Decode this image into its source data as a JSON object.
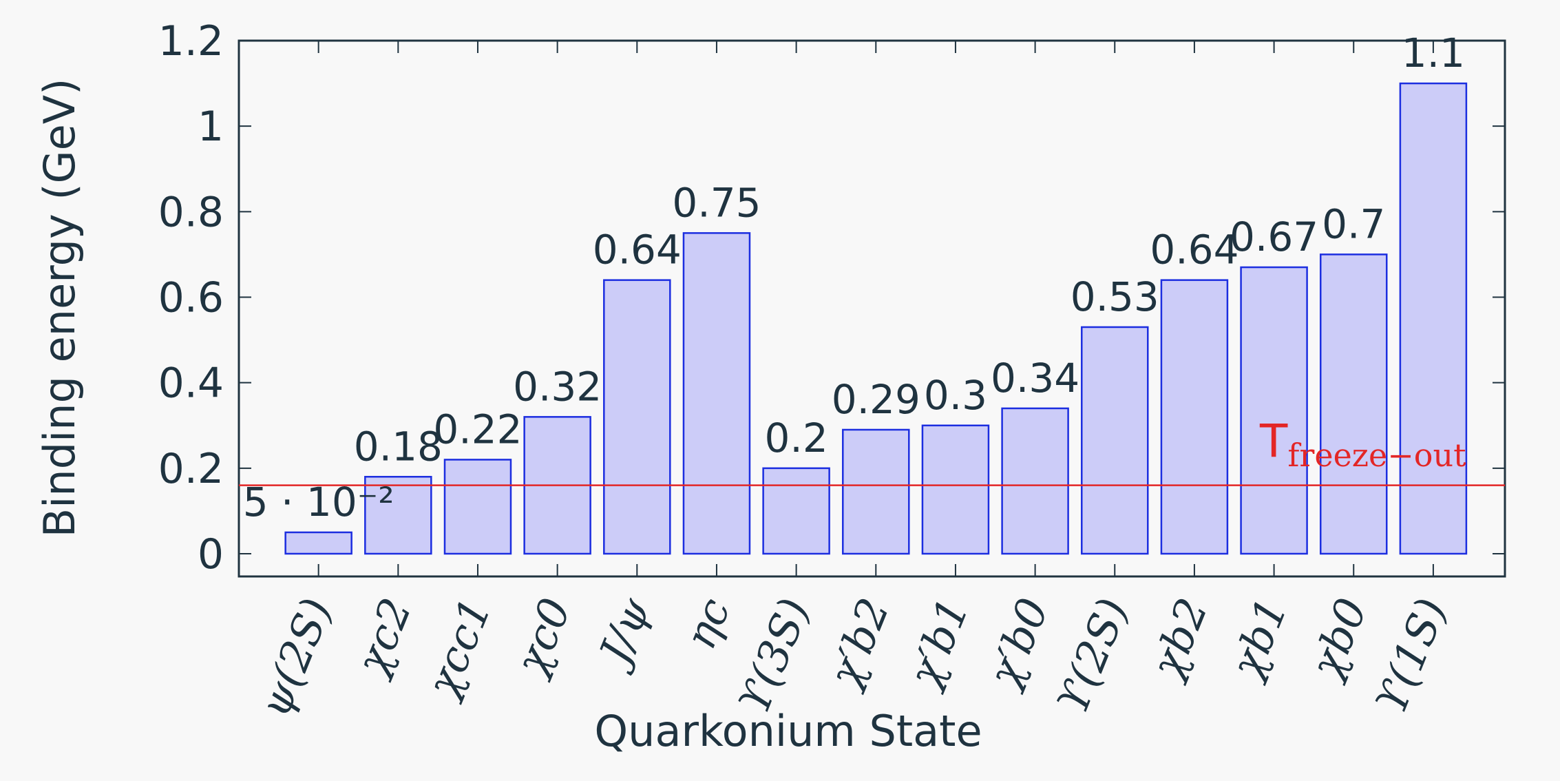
{
  "chart_data": {
    "type": "bar",
    "xlabel": "Quarkonium State",
    "ylabel": "Binding energy (GeV)",
    "categories": [
      "ψ(2S)",
      "χc2",
      "χcc1",
      "χc0",
      "J/ψ",
      "ηc",
      "ϒ(3S)",
      "χ′b2",
      "χ′b1",
      "χ′b0",
      "ϒ(2S)",
      "χb2",
      "χb1",
      "χb0",
      "ϒ(1S)"
    ],
    "values": [
      0.05,
      0.18,
      0.22,
      0.32,
      0.64,
      0.75,
      0.2,
      0.29,
      0.3,
      0.34,
      0.53,
      0.64,
      0.67,
      0.7,
      1.1
    ],
    "value_labels": [
      "5 · 10⁻²",
      "0.18",
      "0.22",
      "0.32",
      "0.64",
      "0.75",
      "0.2",
      "0.29",
      "0.3",
      "0.34",
      "0.53",
      "0.64",
      "0.67",
      "0.7",
      "1.1"
    ],
    "yticks": [
      0,
      0.2,
      0.4,
      0.6,
      0.8,
      1,
      1.2
    ],
    "ytick_labels": [
      "0",
      "0.2",
      "0.4",
      "0.6",
      "0.8",
      "1",
      "1.2"
    ],
    "ylim": [
      -0.055,
      1.2
    ],
    "grid": false,
    "reference_line": {
      "y": 0.16,
      "label_main": "T",
      "label_sub": "freeze−out",
      "color": "#e32626"
    },
    "colors": {
      "bar_fill": "#ccccf8",
      "bar_stroke": "#1c2ee0",
      "text": "#1f3340",
      "axis": "#1f3340",
      "background": "#f8f8f8"
    }
  }
}
